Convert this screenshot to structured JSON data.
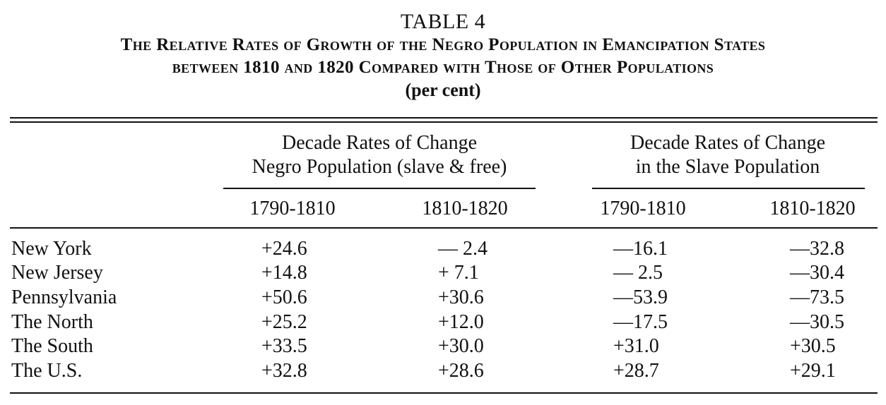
{
  "table": {
    "number": "TABLE 4",
    "title_line1": "The Relative Rates of Growth of the Negro Population in Emancipation States",
    "title_line2": "between 1810 and 1820 Compared with Those of Other Populations",
    "unit": "(per cent)",
    "groups": [
      {
        "line1": "Decade Rates of Change",
        "line2": "Negro Population (slave & free)"
      },
      {
        "line1": "Decade Rates of Change",
        "line2": "in the Slave Population"
      }
    ],
    "periods": [
      "1790-1810",
      "1810-1820",
      "1790-1810",
      "1810-1820"
    ],
    "rows": [
      {
        "label": "New York",
        "values": [
          "+24.6",
          "— 2.4",
          "—16.1",
          "—32.8"
        ]
      },
      {
        "label": "New Jersey",
        "values": [
          "+14.8",
          "+ 7.1",
          "— 2.5",
          "—30.4"
        ]
      },
      {
        "label": "Pennsylvania",
        "values": [
          "+50.6",
          "+30.6",
          "—53.9",
          "—73.5"
        ]
      },
      {
        "label": "The North",
        "values": [
          "+25.2",
          "+12.0",
          "—17.5",
          "—30.5"
        ]
      },
      {
        "label": "The South",
        "values": [
          "+33.5",
          "+30.0",
          "+31.0",
          "+30.5"
        ]
      },
      {
        "label": "The U.S.",
        "values": [
          "+32.8",
          "+28.6",
          "+28.7",
          "+29.1"
        ]
      }
    ]
  }
}
